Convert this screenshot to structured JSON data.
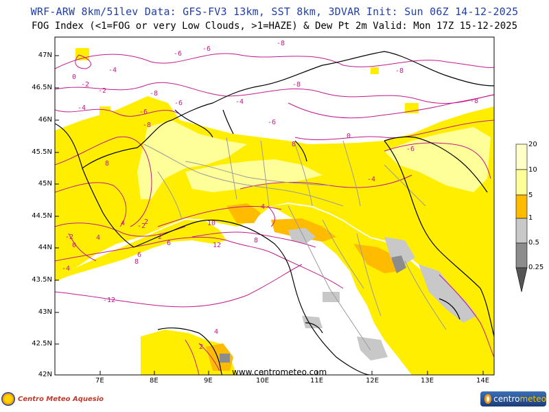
{
  "header": {
    "title": "WRF-ARW 8km/51lev  Data: GFS-FV3 13km, SST 8km, 3DVAR  Init: Sun 06Z 14-12-2025",
    "subtitle": "FOG Index (<1=FOG or very Low Clouds, >1=HAZE) & Dew Pt 2m  Valid: Mon 17Z 15-12-2025"
  },
  "map": {
    "lat_labels": [
      "47N",
      "46.5N",
      "46N",
      "45.5N",
      "45N",
      "44.5N",
      "44N",
      "43.5N",
      "43N",
      "42.5N",
      "42N"
    ],
    "lon_labels": [
      "7E",
      "8E",
      "9E",
      "10E",
      "11E",
      "12E",
      "13E",
      "14E"
    ],
    "watermark": "www.centrometeo.com",
    "contour_labels": [
      "-6",
      "-6",
      "-8",
      "-4",
      "-2",
      "0",
      "-2",
      "-4",
      "-8",
      "-6",
      "-8",
      "-8",
      "-4",
      "-6",
      "-8",
      "-6",
      "2",
      "4",
      "-2",
      "0",
      "-2",
      "-4",
      "-4",
      "8",
      "6",
      "4",
      "2",
      "8",
      "6",
      "10",
      "12",
      "-12",
      "8",
      "4",
      "-6",
      "-8",
      "8",
      "4",
      "2",
      "0"
    ],
    "colors": {
      "fog_haze_yellow": "#ffee00",
      "light_yellow": "#ffff99",
      "orange": "#ffbb00",
      "gray_light": "#c8c8c8",
      "gray_dark": "#8c8c8c",
      "dewpoint_contour": "#c2188c",
      "border_black": "#000000",
      "region_gray": "#9a9a9a"
    }
  },
  "legend": {
    "labels": [
      "20",
      "10",
      "5",
      "1",
      "0.5",
      "0.25"
    ],
    "colors": [
      "#ffffc8",
      "#ffff99",
      "#ffee00",
      "#ffbb00",
      "#c8c8c8",
      "#8c8c8c",
      "#555555"
    ]
  },
  "logos": {
    "left_text": "Centro Meteo Aquesio",
    "right_text_a": "centro",
    "right_text_b": "meteo"
  }
}
